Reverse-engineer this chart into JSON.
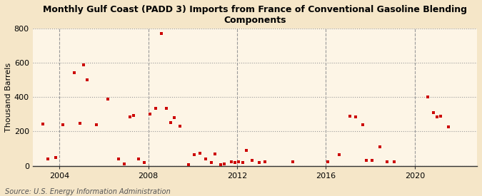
{
  "title": "Monthly Gulf Coast (PADD 3) Imports from France of Conventional Gasoline Blending\nComponents",
  "ylabel": "Thousand Barrels",
  "source": "Source: U.S. Energy Information Administration",
  "background_color": "#f5e6c8",
  "plot_bg_color": "#fdf5e6",
  "marker_color": "#cc0000",
  "ylim": [
    0,
    800
  ],
  "yticks": [
    0,
    200,
    400,
    600,
    800
  ],
  "xticks": [
    2004,
    2008,
    2012,
    2016,
    2020
  ],
  "xlim": [
    2002.8,
    2022.8
  ],
  "data_points": [
    [
      2003.25,
      243
    ],
    [
      2003.5,
      40
    ],
    [
      2003.83,
      50
    ],
    [
      2004.17,
      240
    ],
    [
      2004.67,
      545
    ],
    [
      2004.92,
      247
    ],
    [
      2005.08,
      590
    ],
    [
      2005.25,
      500
    ],
    [
      2005.67,
      240
    ],
    [
      2006.17,
      390
    ],
    [
      2006.67,
      40
    ],
    [
      2006.92,
      10
    ],
    [
      2007.17,
      285
    ],
    [
      2007.33,
      295
    ],
    [
      2007.58,
      40
    ],
    [
      2007.83,
      20
    ],
    [
      2008.08,
      300
    ],
    [
      2008.33,
      335
    ],
    [
      2008.58,
      770
    ],
    [
      2008.83,
      335
    ],
    [
      2009.0,
      250
    ],
    [
      2009.17,
      280
    ],
    [
      2009.42,
      230
    ],
    [
      2009.83,
      5
    ],
    [
      2010.08,
      65
    ],
    [
      2010.33,
      75
    ],
    [
      2010.58,
      40
    ],
    [
      2010.83,
      20
    ],
    [
      2011.0,
      70
    ],
    [
      2011.25,
      5
    ],
    [
      2011.42,
      10
    ],
    [
      2011.75,
      25
    ],
    [
      2011.92,
      20
    ],
    [
      2012.08,
      25
    ],
    [
      2012.25,
      20
    ],
    [
      2012.42,
      90
    ],
    [
      2012.67,
      30
    ],
    [
      2013.0,
      20
    ],
    [
      2013.25,
      25
    ],
    [
      2014.5,
      25
    ],
    [
      2016.08,
      25
    ],
    [
      2016.58,
      65
    ],
    [
      2017.08,
      290
    ],
    [
      2017.33,
      285
    ],
    [
      2017.67,
      240
    ],
    [
      2017.83,
      30
    ],
    [
      2018.08,
      30
    ],
    [
      2018.42,
      110
    ],
    [
      2018.75,
      25
    ],
    [
      2019.08,
      25
    ],
    [
      2020.58,
      400
    ],
    [
      2020.83,
      310
    ],
    [
      2021.0,
      285
    ],
    [
      2021.17,
      290
    ],
    [
      2021.5,
      225
    ]
  ]
}
